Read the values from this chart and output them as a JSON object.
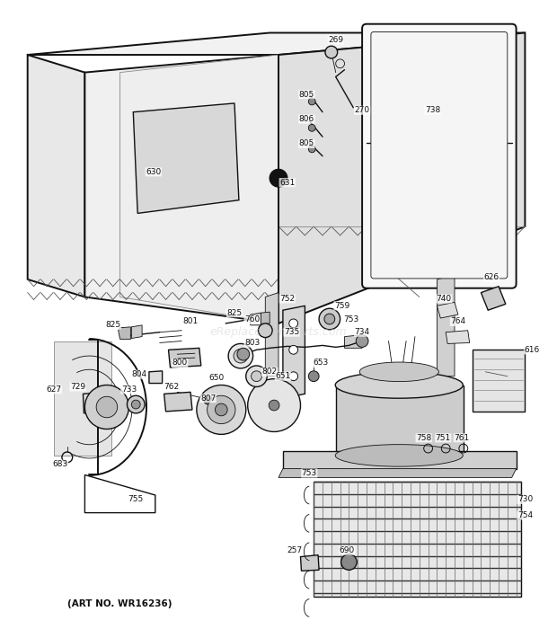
{
  "bg_color": "#ffffff",
  "line_color": "#1a1a1a",
  "art_no": "(ART NO. WR16236)",
  "watermark": "eReplacementParts.com",
  "fig_width": 6.2,
  "fig_height": 7.1,
  "dpi": 100
}
